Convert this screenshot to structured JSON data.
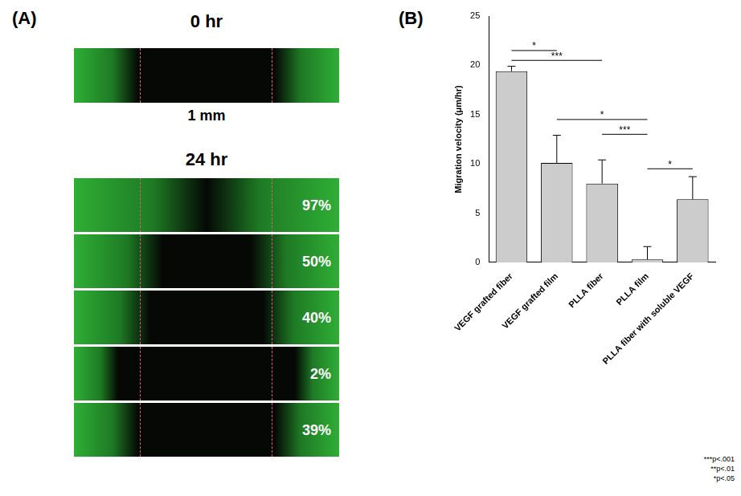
{
  "panel_a": {
    "label": "(A)",
    "before_title": "0 hr",
    "scale_label": "1 mm",
    "after_title": "24 hr",
    "closure_labels": [
      "97%",
      "50%",
      "40%",
      "2%",
      "39%"
    ]
  },
  "chart_data": {
    "type": "bar",
    "panel_label": "(B)",
    "y_label": "Migration velocity (μm/hr)",
    "categories": [
      "VEGF grafted fiber",
      "VEGF grafted film",
      "PLLA fiber",
      "PLLA film",
      "PLLA fiber with soluble VEGF"
    ],
    "values": [
      19.4,
      10.1,
      8.0,
      0.3,
      6.4
    ],
    "errors": [
      0.5,
      2.8,
      2.4,
      1.3,
      2.3
    ],
    "color": "#cccccc",
    "ylim": [
      0,
      25
    ],
    "yticks": [
      0,
      5,
      10,
      15,
      20,
      25
    ],
    "grid": false,
    "annotations": [
      {
        "from": 0,
        "to": 1,
        "y": 21.5,
        "text": "*"
      },
      {
        "from": 0,
        "to": 2,
        "y": 20.5,
        "text": "***"
      },
      {
        "from": 1,
        "to": 3,
        "y": 14.5,
        "text": "*"
      },
      {
        "from": 2,
        "to": 3,
        "y": 13.0,
        "text": "***"
      },
      {
        "from": 3,
        "to": 4,
        "y": 9.5,
        "text": "*"
      }
    ],
    "notes": [
      "***p<.001",
      "**p<.01",
      "*p<.05"
    ]
  }
}
